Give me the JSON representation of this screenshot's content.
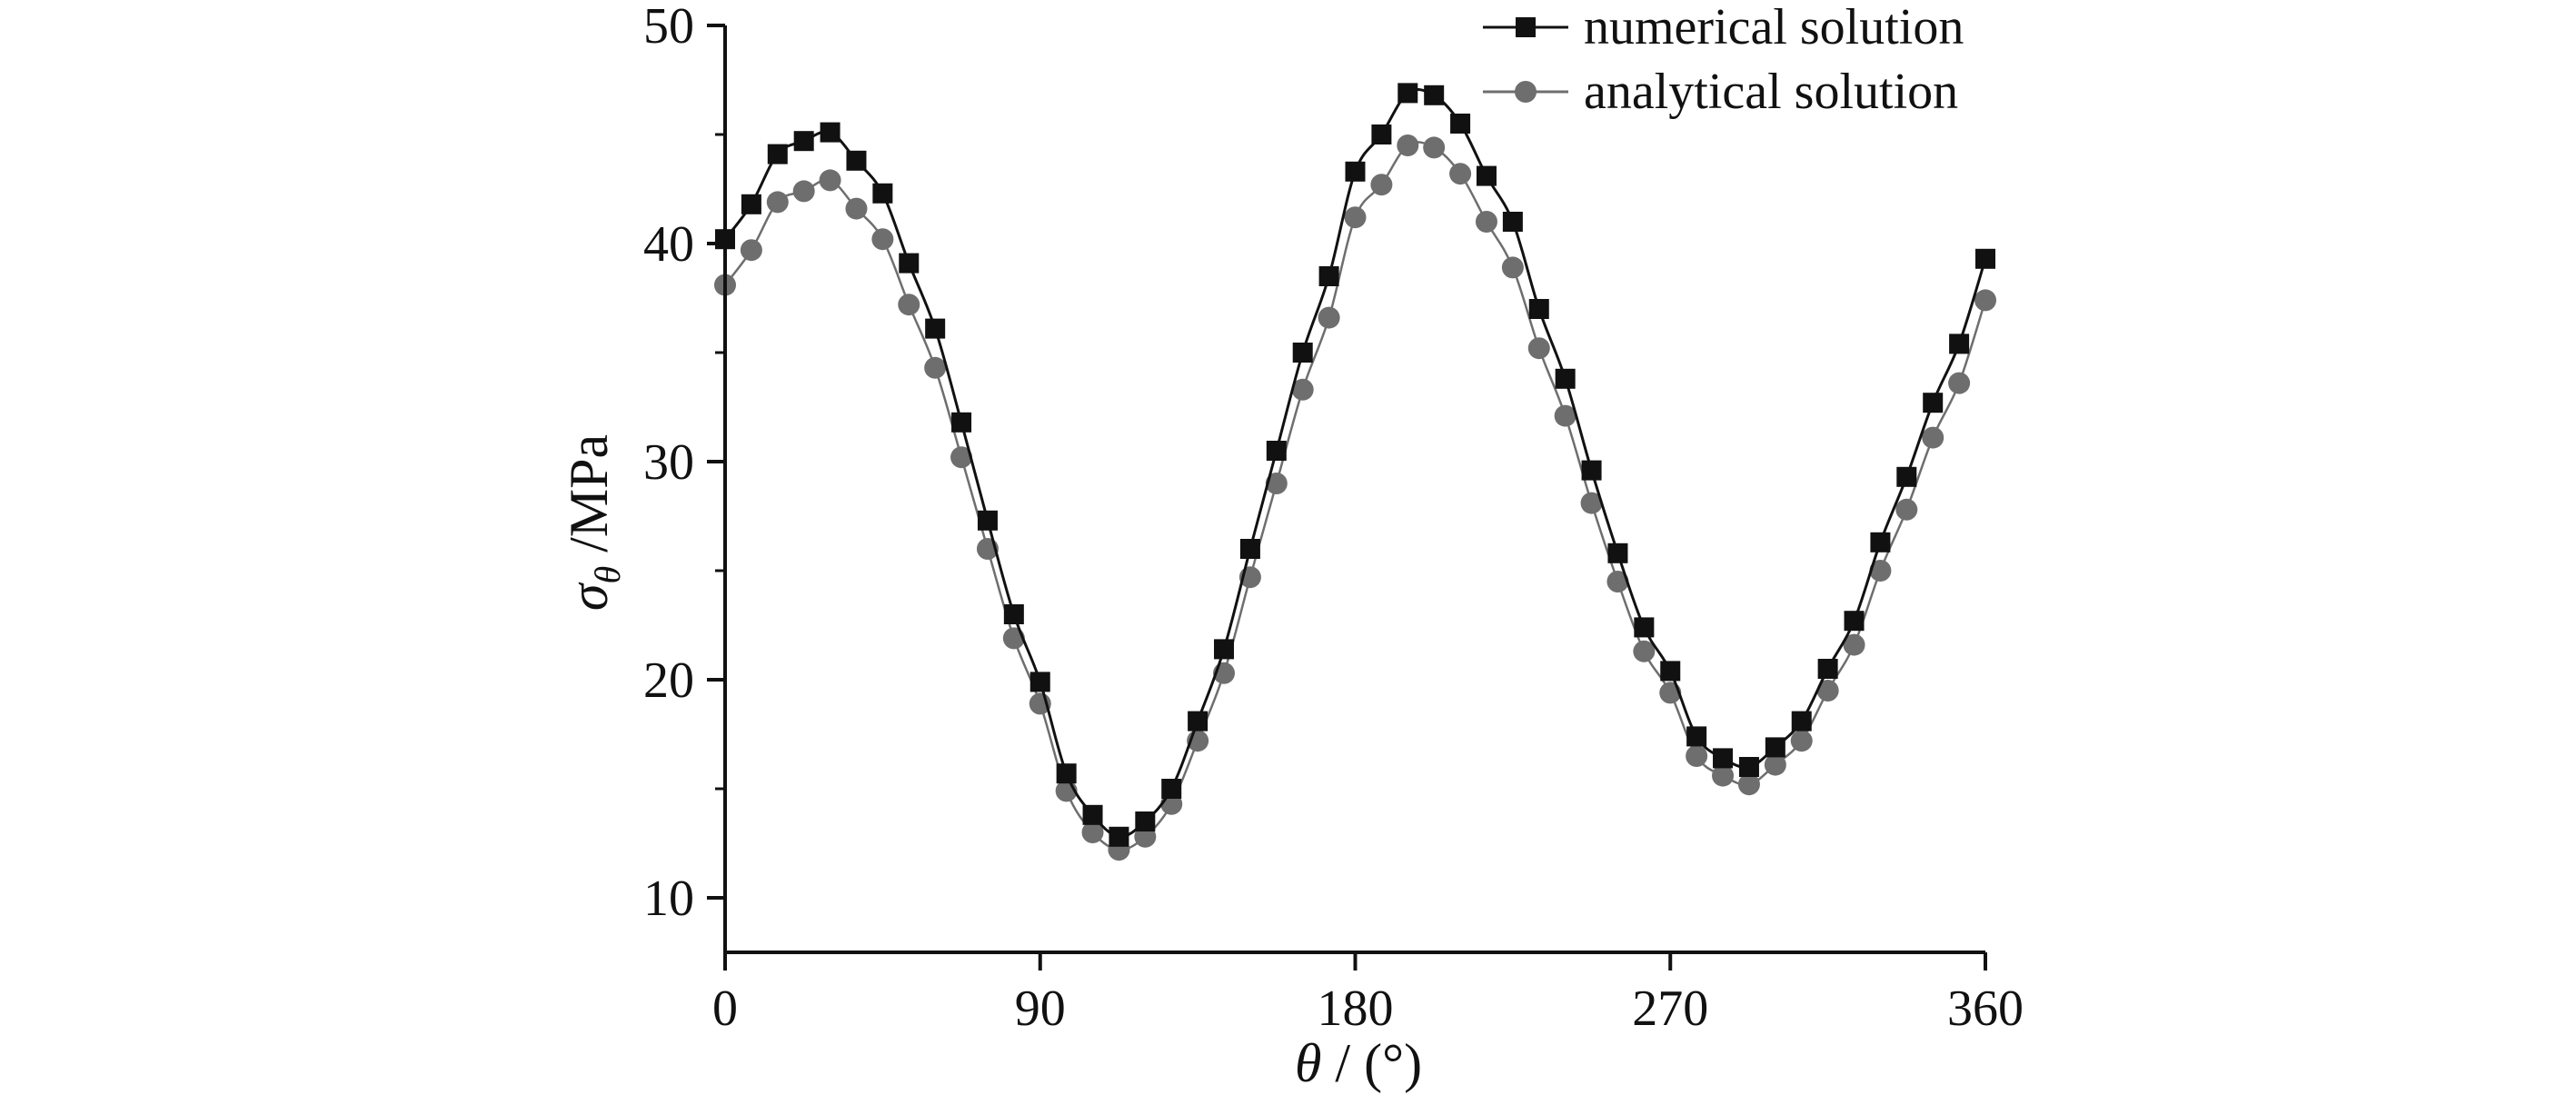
{
  "chart_data": {
    "type": "line",
    "title": "",
    "xlabel": {
      "symbol": "θ",
      "text": " / (°)"
    },
    "ylabel": {
      "symbol": "σ",
      "sub": "θ",
      "text": " /MPa"
    },
    "xlim": [
      0,
      360
    ],
    "ylim": [
      7.5,
      50
    ],
    "xticks": [
      "0",
      "90",
      "180",
      "270",
      "360"
    ],
    "xtick_values": [
      0,
      90,
      180,
      270,
      360
    ],
    "yticks": [
      "10",
      "20",
      "30",
      "40",
      "50"
    ],
    "ytick_values": [
      10,
      20,
      30,
      40,
      50
    ],
    "grid": false,
    "legend_position": "top-right",
    "x": [
      0,
      7.5,
      15,
      22.5,
      30,
      37.5,
      45,
      52.5,
      60,
      67.5,
      75,
      82.5,
      90,
      97.5,
      105,
      112.5,
      120,
      127.5,
      135,
      142.5,
      150,
      157.5,
      165,
      172.5,
      180,
      187.5,
      195,
      202.5,
      210,
      217.5,
      225,
      232.5,
      240,
      247.5,
      255,
      262.5,
      270,
      277.5,
      285,
      292.5,
      300,
      307.5,
      315,
      322.5,
      330,
      337.5,
      345,
      352.5,
      360
    ],
    "series": [
      {
        "name": "numerical solution",
        "marker": "square",
        "color": "#111111",
        "values": [
          40.2,
          41.8,
          44.1,
          44.7,
          45.1,
          43.8,
          42.3,
          39.1,
          36.1,
          31.8,
          27.3,
          23.0,
          19.9,
          15.7,
          13.8,
          12.8,
          13.5,
          15.0,
          18.1,
          21.4,
          26.0,
          30.5,
          35.0,
          38.5,
          43.3,
          45.0,
          46.9,
          46.8,
          45.5,
          43.1,
          41.0,
          37.0,
          33.8,
          29.6,
          25.8,
          22.4,
          20.4,
          17.4,
          16.4,
          16.0,
          16.9,
          18.1,
          20.5,
          22.7,
          26.3,
          29.3,
          32.7,
          35.4,
          39.3
        ]
      },
      {
        "name": "analytical solution",
        "marker": "circle",
        "color": "#6e6e6e",
        "values": [
          38.1,
          39.7,
          41.9,
          42.4,
          42.9,
          41.6,
          40.2,
          37.2,
          34.3,
          30.2,
          26.0,
          21.9,
          18.9,
          14.9,
          13.0,
          12.2,
          12.8,
          14.3,
          17.2,
          20.3,
          24.7,
          29.0,
          33.3,
          36.6,
          41.2,
          42.7,
          44.5,
          44.4,
          43.2,
          41.0,
          38.9,
          35.2,
          32.1,
          28.1,
          24.5,
          21.3,
          19.4,
          16.5,
          15.6,
          15.2,
          16.1,
          17.2,
          19.5,
          21.6,
          25.0,
          27.8,
          31.1,
          33.6,
          37.4
        ]
      }
    ]
  }
}
